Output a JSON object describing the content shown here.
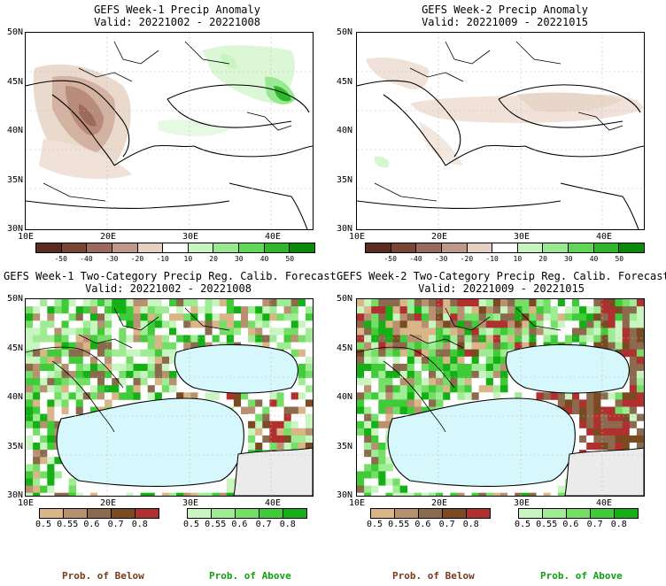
{
  "panels": [
    {
      "id": "p1",
      "title": "GEFS Week-1 Precip Anomaly",
      "valid": "Valid: 20221002 - 20221008"
    },
    {
      "id": "p2",
      "title": "GEFS Week-2 Precip Anomaly",
      "valid": "Valid: 20221009 - 20221015"
    },
    {
      "id": "p3",
      "title": "GEFS Week-1 Two-Category Precip Reg. Calib. Forecast",
      "valid": "Valid: 20221002 - 20221008"
    },
    {
      "id": "p4",
      "title": "GEFS Week-2 Two-Category Precip Reg. Calib. Forecast",
      "valid": "Valid: 20221009 - 20221015"
    }
  ],
  "lat_labels": [
    "50N",
    "45N",
    "40N",
    "35N",
    "30N"
  ],
  "lon_labels": [
    "10E",
    "20E",
    "30E",
    "40E"
  ],
  "anomaly_colorbar": {
    "ticks": [
      "-50",
      "-40",
      "-30",
      "-20",
      "-10",
      "10",
      "20",
      "30",
      "40",
      "50"
    ],
    "colors": [
      "#5a2d1e",
      "#7a4535",
      "#9b6a5c",
      "#c0988a",
      "#e6d0c3",
      "#ffffff",
      "#c6f5c0",
      "#98ea90",
      "#5fd655",
      "#2fb82c",
      "#0a8a0a"
    ]
  },
  "prob_below": {
    "label": "Prob. of Below",
    "ticks": [
      "0.5",
      "0.55",
      "0.6",
      "0.7",
      "0.8"
    ],
    "colors": [
      "#d9b588",
      "#b89270",
      "#8b6a4e",
      "#7a4a22",
      "#b03030"
    ],
    "label_color": "#7a3a1a"
  },
  "prob_above": {
    "label": "Prob. of Above",
    "ticks": [
      "0.5",
      "0.55",
      "0.6",
      "0.7",
      "0.8"
    ],
    "colors": [
      "#c8f5c0",
      "#a0ec94",
      "#74de66",
      "#3fcc38",
      "#15b015"
    ],
    "label_color": "#10a010"
  }
}
